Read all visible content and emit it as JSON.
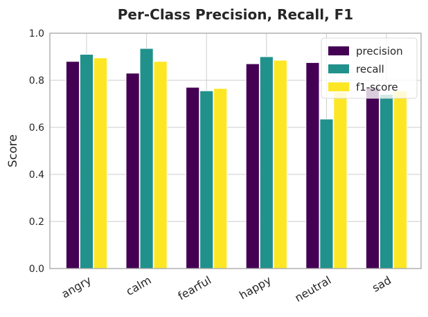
{
  "chart_data": {
    "type": "bar",
    "title": "Per-Class Precision, Recall, F1",
    "xlabel": "",
    "ylabel": "Score",
    "ylim": [
      0,
      1.0
    ],
    "yticks": [
      "0.0",
      "0.2",
      "0.4",
      "0.6",
      "0.8",
      "1.0"
    ],
    "categories": [
      "angry",
      "calm",
      "fearful",
      "happy",
      "neutral",
      "sad"
    ],
    "series": [
      {
        "name": "precision",
        "color": "#440154",
        "values": [
          0.88,
          0.83,
          0.77,
          0.87,
          0.875,
          0.77
        ]
      },
      {
        "name": "recall",
        "color": "#21918c",
        "values": [
          0.91,
          0.935,
          0.755,
          0.9,
          0.635,
          0.74
        ]
      },
      {
        "name": "f1-score",
        "color": "#fde725",
        "values": [
          0.895,
          0.88,
          0.765,
          0.885,
          0.75,
          0.755
        ]
      }
    ],
    "grid": true,
    "legend_position": "top-right"
  }
}
